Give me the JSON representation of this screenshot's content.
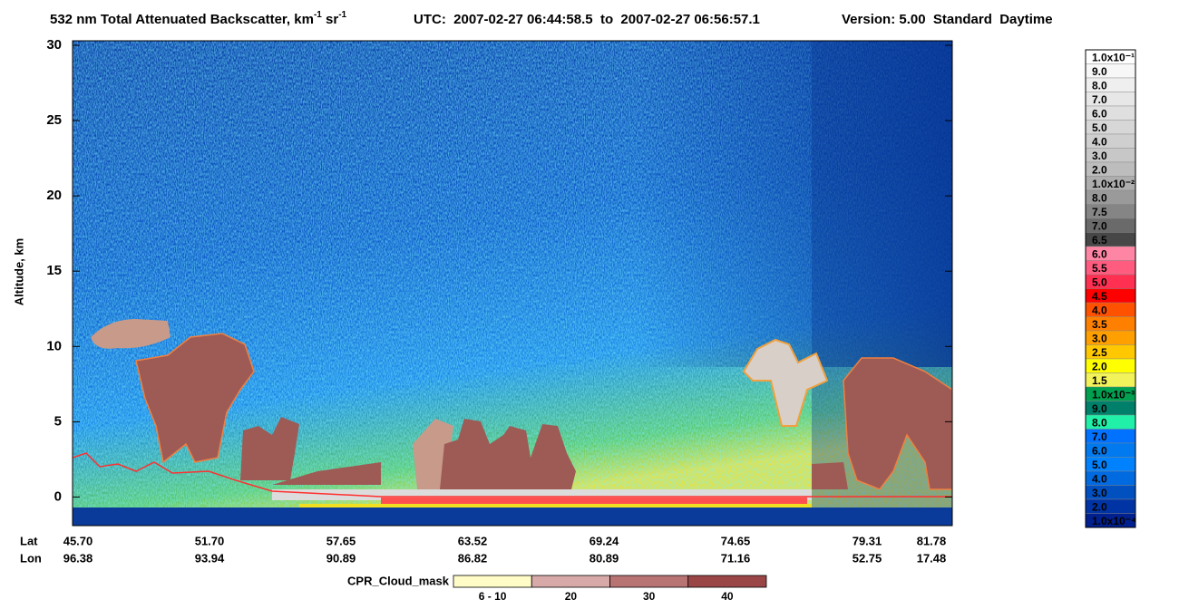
{
  "chart_data": {
    "type": "curtain",
    "title": [
      "532 nm Total Attenuated Backscatter, km",
      "-1",
      " sr",
      "-1"
    ],
    "subtitle": "UTC:  2007-02-27 06:44:58.5  to  2007-02-27 06:56:57.1",
    "version": "Version: 5.00  Standard  Daytime",
    "y_label": "Altitude, km",
    "ylim": [
      -1.9,
      30.3
    ],
    "yticks": [
      0,
      5,
      10,
      15,
      20,
      25,
      30
    ],
    "x_row_labels": [
      "Lat",
      "Lon"
    ],
    "lat": [
      "45.70",
      "51.70",
      "57.65",
      "63.52",
      "69.24",
      "74.65",
      "79.31",
      "81.78"
    ],
    "lon": [
      "96.38",
      "93.94",
      "90.89",
      "86.82",
      "80.89",
      "71.16",
      "52.75",
      "17.48"
    ],
    "colorbar": {
      "labels": [
        "1.0x10⁻¹",
        "9.0",
        "8.0",
        "7.0",
        "6.0",
        "5.0",
        "4.0",
        "3.0",
        "2.0",
        "1.0x10⁻²",
        "8.0",
        "7.5",
        "7.0",
        "6.5",
        "6.0",
        "5.5",
        "5.0",
        "4.5",
        "4.0",
        "3.5",
        "3.0",
        "2.5",
        "2.0",
        "1.5",
        "1.0x10⁻³",
        "9.0",
        "8.0",
        "7.0",
        "6.0",
        "5.0",
        "4.0",
        "3.0",
        "2.0",
        "1.0x10⁻⁴"
      ],
      "colors": [
        "#ffffff",
        "#f7f7f7",
        "#efefef",
        "#e7e7e7",
        "#dfdfdf",
        "#d7d7d7",
        "#cfcfcf",
        "#c7c7c7",
        "#bdbdbd",
        "#adadad",
        "#9a9a9a",
        "#858585",
        "#6a6a6a",
        "#474747",
        "#ff85a5",
        "#ff5c80",
        "#ff3052",
        "#ff0000",
        "#ff5200",
        "#ff8000",
        "#ffa000",
        "#ffc800",
        "#ffff00",
        "#f2f25a",
        "#00a050",
        "#00806a",
        "#20f0a8",
        "#0072ff",
        "#007aee",
        "#0082ff",
        "#006ae0",
        "#0050c0",
        "#0034a4",
        "#00208f"
      ]
    },
    "cpr_cloud_mask": {
      "title": "CPR_Cloud_mask",
      "labels": [
        "6 - 10",
        "20",
        "30",
        "40"
      ],
      "colors": [
        "#fffcc8",
        "#d7a9a9",
        "#b87373",
        "#9a4646"
      ]
    }
  }
}
